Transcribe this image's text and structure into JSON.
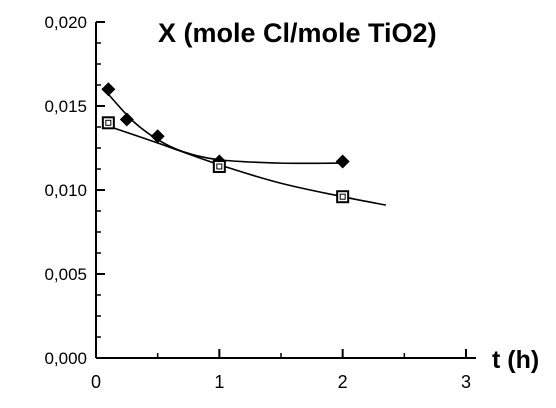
{
  "chart_data": {
    "type": "scatter",
    "title": "X (mole Cl/mole TiO2)",
    "xlabel": "t (h)",
    "ylabel": "",
    "xlim": [
      0,
      3
    ],
    "ylim": [
      0,
      0.02
    ],
    "x_ticks": [
      0,
      1,
      2,
      3
    ],
    "x_tick_labels": [
      "0",
      "1",
      "2",
      "3"
    ],
    "y_ticks": [
      0,
      0.005,
      0.01,
      0.015,
      0.02
    ],
    "y_tick_labels": [
      "0,000",
      "0,005",
      "0,010",
      "0,015",
      "0,020"
    ],
    "grid": false,
    "series": [
      {
        "marker": "diamond",
        "x": [
          0.1,
          0.25,
          0.5,
          1.0,
          2.0
        ],
        "y": [
          0.016,
          0.0142,
          0.0132,
          0.0117,
          0.0117
        ],
        "fit_curve": {
          "x": [
            0.1,
            0.3,
            0.5,
            0.7,
            1.0,
            1.5,
            2.0
          ],
          "y": [
            0.0157,
            0.0141,
            0.013,
            0.0123,
            0.0118,
            0.0116,
            0.0116
          ]
        }
      },
      {
        "marker": "square",
        "x": [
          0.1,
          1.0,
          2.0
        ],
        "y": [
          0.014,
          0.0114,
          0.0096
        ],
        "fit_curve": {
          "x": [
            0.1,
            0.5,
            1.0,
            1.5,
            2.0,
            2.35
          ],
          "y": [
            0.0138,
            0.0128,
            0.0115,
            0.0104,
            0.0096,
            0.0091
          ]
        }
      }
    ]
  }
}
